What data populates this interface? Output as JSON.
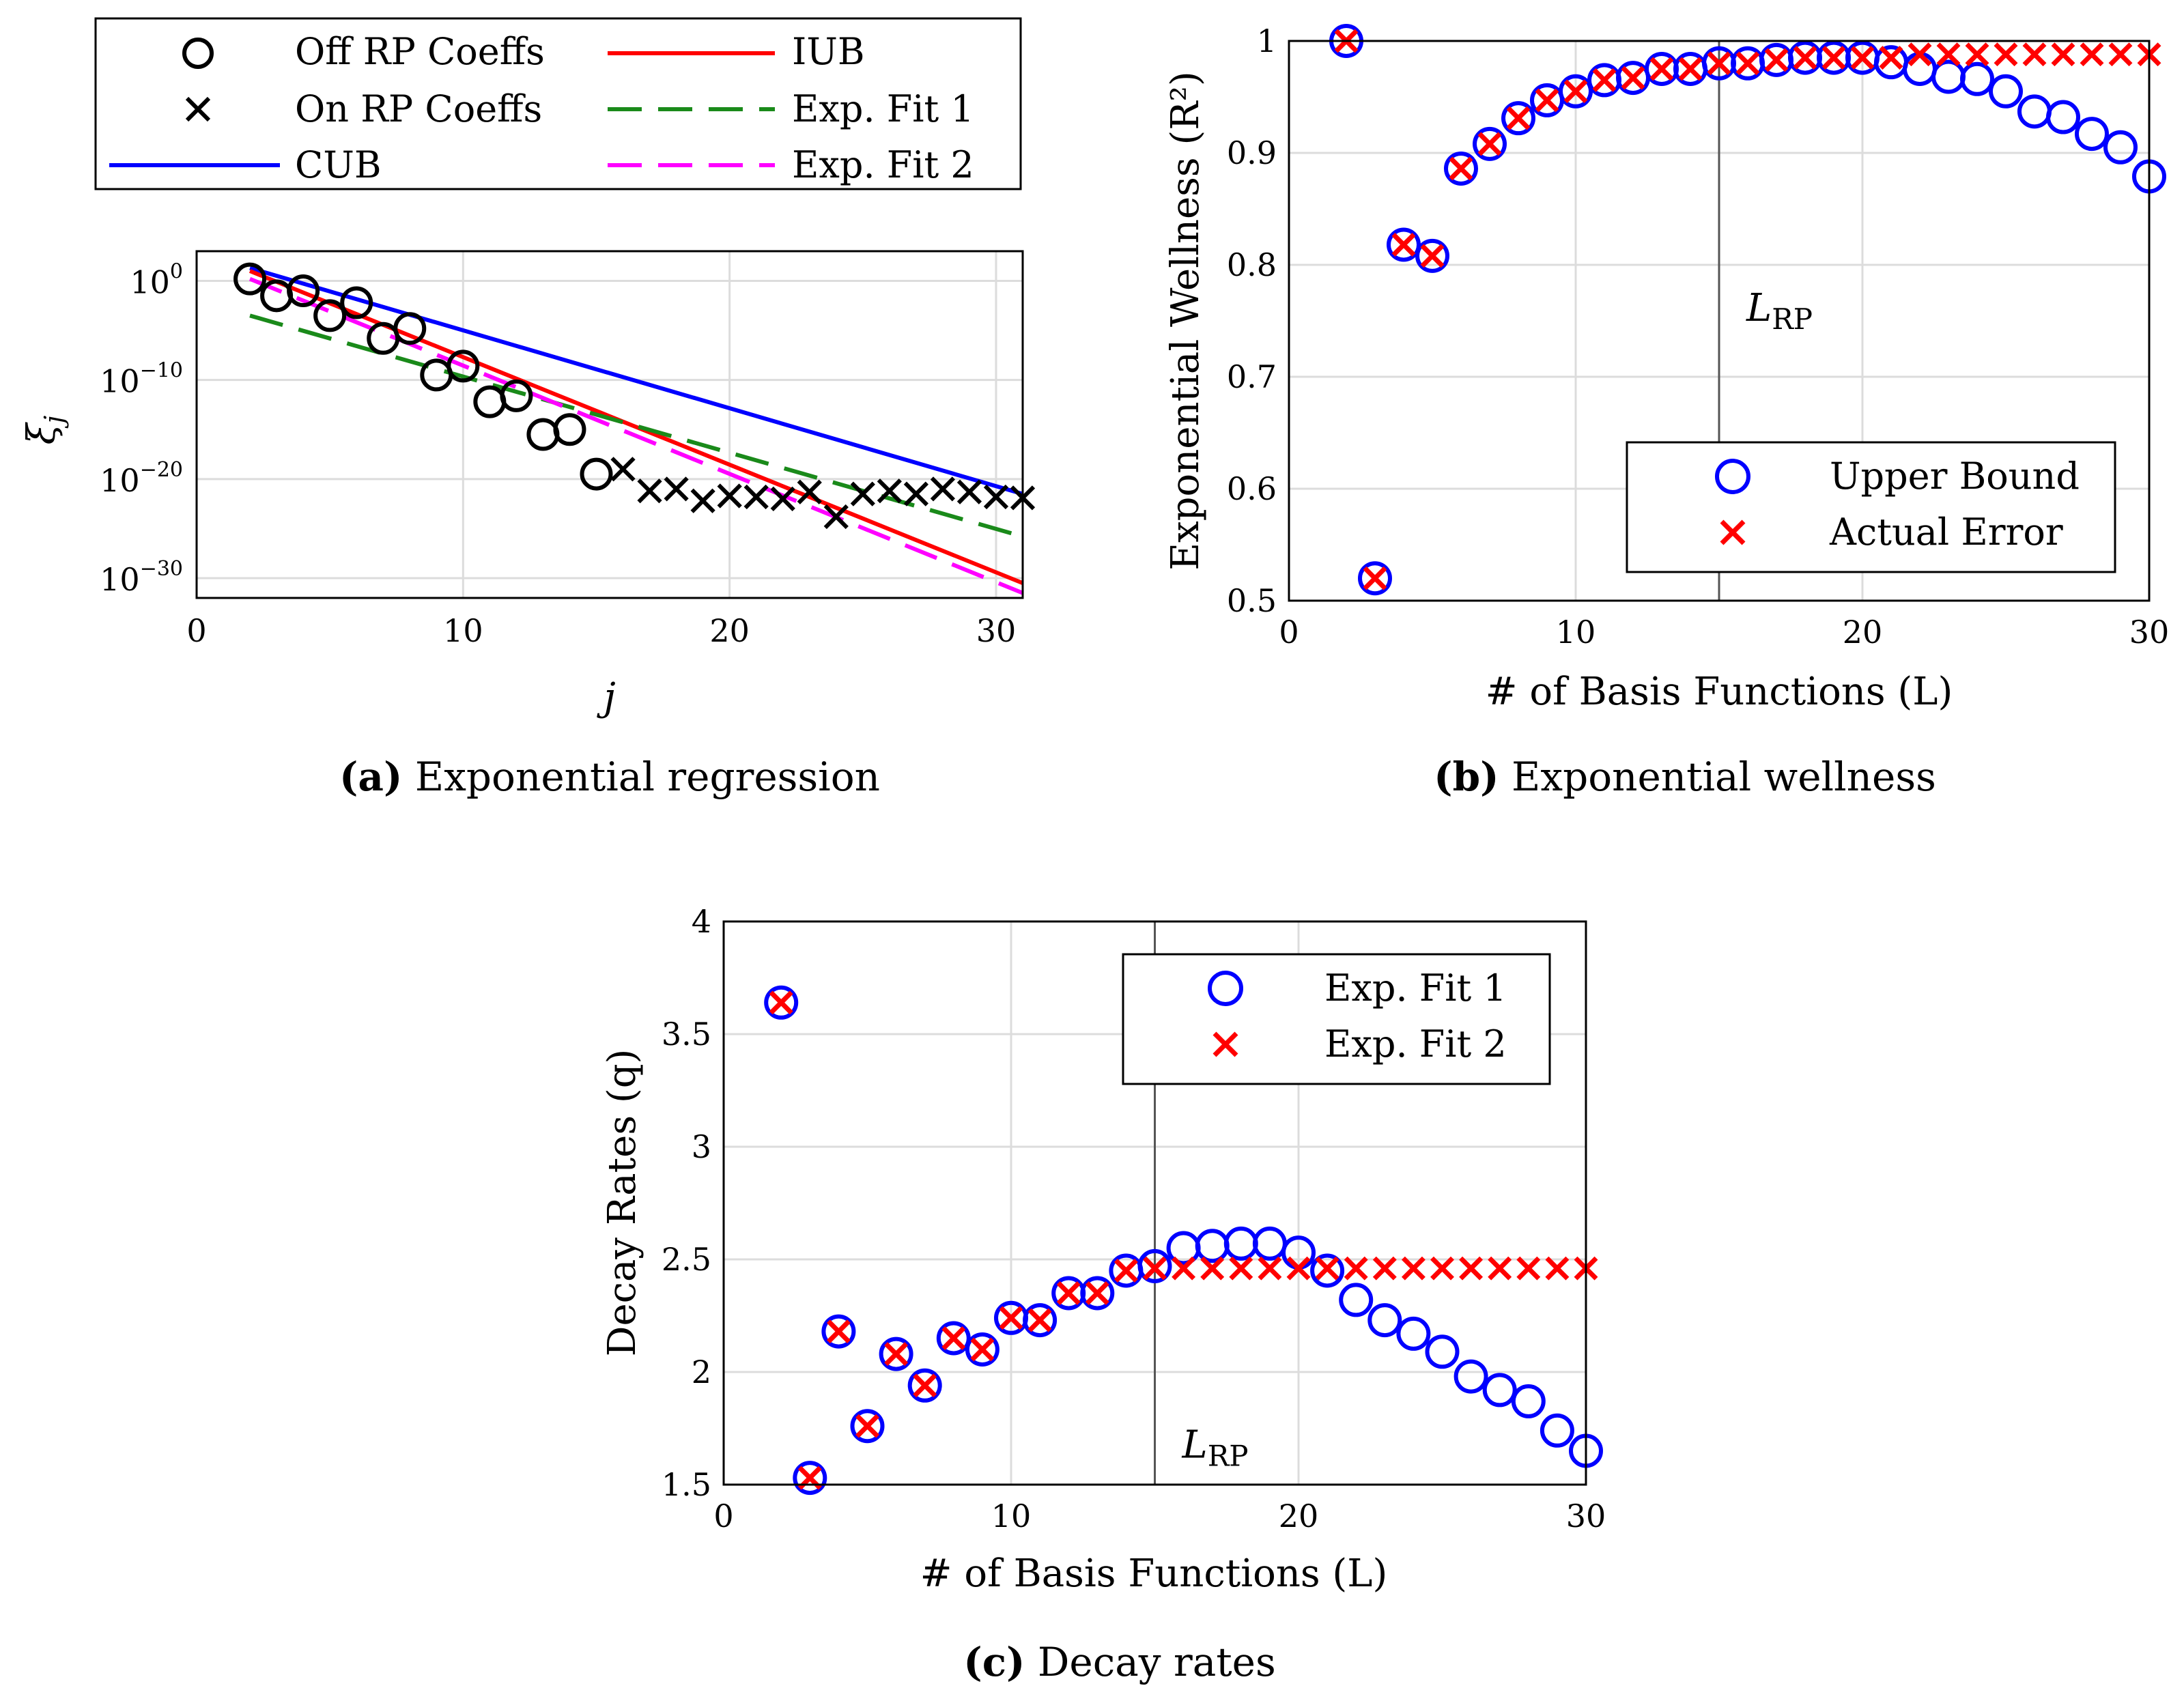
{
  "colors": {
    "black": "#000000",
    "blue": "#0000ff",
    "red": "#ff0000",
    "green": "#1a8a1a",
    "magenta": "#ff00ff",
    "grid": "#dcdcdc",
    "vline": "#555555"
  },
  "chart_data": [
    {
      "id": "a",
      "type": "scatter",
      "scale_y": "log",
      "caption_letter": "(a)",
      "caption_text": "Exponential regression",
      "xlabel": "j",
      "ylabel": "ξ",
      "ylabel_sub": "j",
      "xlim": [
        0,
        31
      ],
      "ylim_exp": [
        -32,
        3
      ],
      "xticks": [
        "0",
        "10",
        "20",
        "30"
      ],
      "yticks": [
        {
          "base": "10",
          "exp": "0"
        },
        {
          "base": "10",
          "exp": "−10"
        },
        {
          "base": "10",
          "exp": "−20"
        },
        {
          "base": "10",
          "exp": "−30"
        }
      ],
      "legend": [
        {
          "label": "Off RP Coeffs",
          "marker": "circle"
        },
        {
          "label": "On RP Coeffs",
          "marker": "x"
        },
        {
          "label": "CUB",
          "line": "solid-blue"
        },
        {
          "label": "IUB",
          "line": "solid-red"
        },
        {
          "label": "Exp. Fit 1",
          "line": "dashed-green"
        },
        {
          "label": "Exp. Fit 2",
          "line": "dashed-magenta"
        }
      ],
      "off_rp": {
        "x": [
          2,
          3,
          4,
          5,
          6,
          7,
          8,
          9,
          10,
          11,
          12,
          13,
          14,
          15
        ],
        "log10": [
          0.2,
          -1.5,
          -1.0,
          -3.5,
          -2.2,
          -5.8,
          -4.8,
          -9.5,
          -8.6,
          -12.2,
          -11.6,
          -15.5,
          -15.0,
          -19.5
        ]
      },
      "on_rp": {
        "x": [
          16,
          17,
          18,
          19,
          20,
          21,
          22,
          23,
          24,
          25,
          26,
          27,
          28,
          29,
          30,
          31
        ],
        "log10": [
          -19.0,
          -21.2,
          -21.0,
          -22.2,
          -21.7,
          -21.8,
          -22.0,
          -21.3,
          -23.8,
          -21.5,
          -21.2,
          -21.5,
          -21.0,
          -21.3,
          -21.8,
          -21.9
        ]
      },
      "lines": {
        "CUB": {
          "x": [
            2,
            31
          ],
          "log10": [
            1.3,
            -21.5
          ]
        },
        "IUB": {
          "x": [
            2,
            31
          ],
          "log10": [
            1.0,
            -30.5
          ]
        },
        "Exp. Fit 1": {
          "x": [
            2,
            31
          ],
          "log10": [
            -3.5,
            -25.8
          ]
        },
        "Exp. Fit 2": {
          "x": [
            2,
            31
          ],
          "log10": [
            0.2,
            -31.5
          ]
        }
      }
    },
    {
      "id": "b",
      "type": "scatter",
      "caption_letter": "(b)",
      "caption_text": "Exponential wellness",
      "xlabel": "# of Basis Functions (L)",
      "ylabel": "Exponential Wellness (R²)",
      "xlim": [
        0,
        30
      ],
      "ylim": [
        0.5,
        1.0
      ],
      "xticks": [
        "0",
        "10",
        "20",
        "30"
      ],
      "yticks": [
        "0.5",
        "0.6",
        "0.7",
        "0.8",
        "0.9",
        "1"
      ],
      "vline_x": 15,
      "vline_label": "L",
      "vline_label_sub": "RP",
      "legend": [
        {
          "label": "Upper Bound",
          "marker": "circle-blue"
        },
        {
          "label": "Actual Error",
          "marker": "x-red"
        }
      ],
      "series": [
        {
          "name": "Upper Bound",
          "x": [
            2,
            3,
            4,
            5,
            6,
            7,
            8,
            9,
            10,
            11,
            12,
            13,
            14,
            15,
            16,
            17,
            18,
            19,
            20,
            21,
            22,
            23,
            24,
            25,
            26,
            27,
            28,
            29,
            30
          ],
          "values": [
            1.0,
            0.52,
            0.818,
            0.808,
            0.886,
            0.908,
            0.931,
            0.947,
            0.955,
            0.965,
            0.967,
            0.975,
            0.975,
            0.98,
            0.98,
            0.983,
            0.985,
            0.985,
            0.985,
            0.981,
            0.975,
            0.968,
            0.966,
            0.955,
            0.937,
            0.932,
            0.917,
            0.905,
            0.879
          ]
        },
        {
          "name": "Actual Error",
          "x": [
            2,
            3,
            4,
            5,
            6,
            7,
            8,
            9,
            10,
            11,
            12,
            13,
            14,
            15,
            16,
            17,
            18,
            19,
            20,
            21,
            22,
            23,
            24,
            25,
            26,
            27,
            28,
            29,
            30
          ],
          "values": [
            1.0,
            0.52,
            0.818,
            0.808,
            0.886,
            0.908,
            0.931,
            0.947,
            0.955,
            0.965,
            0.967,
            0.975,
            0.975,
            0.98,
            0.98,
            0.983,
            0.985,
            0.985,
            0.985,
            0.985,
            0.988,
            0.988,
            0.988,
            0.988,
            0.988,
            0.988,
            0.988,
            0.988,
            0.988
          ]
        }
      ]
    },
    {
      "id": "c",
      "type": "scatter",
      "caption_letter": "(c)",
      "caption_text": "Decay rates",
      "xlabel": "# of Basis Functions (L)",
      "ylabel": "Decay Rates (q)",
      "xlim": [
        0,
        30
      ],
      "ylim": [
        1.5,
        4.0
      ],
      "xticks": [
        "0",
        "10",
        "20",
        "30"
      ],
      "yticks": [
        "1.5",
        "2",
        "2.5",
        "3",
        "3.5",
        "4"
      ],
      "vline_x": 15,
      "vline_label": "L",
      "vline_label_sub": "RP",
      "legend": [
        {
          "label": "Exp. Fit 1",
          "marker": "circle-blue"
        },
        {
          "label": "Exp. Fit 2",
          "marker": "x-red"
        }
      ],
      "series": [
        {
          "name": "Exp. Fit 1",
          "x": [
            2,
            3,
            4,
            5,
            6,
            7,
            8,
            9,
            10,
            11,
            12,
            13,
            14,
            15,
            16,
            17,
            18,
            19,
            20,
            21,
            22,
            23,
            24,
            25,
            26,
            27,
            28,
            29,
            30
          ],
          "values": [
            3.64,
            1.53,
            2.18,
            1.76,
            2.08,
            1.94,
            2.15,
            2.1,
            2.24,
            2.23,
            2.35,
            2.35,
            2.45,
            2.47,
            2.55,
            2.56,
            2.57,
            2.57,
            2.53,
            2.45,
            2.32,
            2.23,
            2.17,
            2.09,
            1.98,
            1.92,
            1.87,
            1.74,
            1.65
          ]
        },
        {
          "name": "Exp. Fit 2",
          "x": [
            2,
            3,
            4,
            5,
            6,
            7,
            8,
            9,
            10,
            11,
            12,
            13,
            14,
            15,
            16,
            17,
            18,
            19,
            20,
            21,
            22,
            23,
            24,
            25,
            26,
            27,
            28,
            29,
            30
          ],
          "values": [
            3.64,
            1.53,
            2.18,
            1.76,
            2.08,
            1.94,
            2.15,
            2.1,
            2.24,
            2.23,
            2.35,
            2.35,
            2.45,
            2.46,
            2.46,
            2.46,
            2.46,
            2.46,
            2.46,
            2.46,
            2.46,
            2.46,
            2.46,
            2.46,
            2.46,
            2.46,
            2.46,
            2.46,
            2.46
          ]
        }
      ]
    }
  ]
}
